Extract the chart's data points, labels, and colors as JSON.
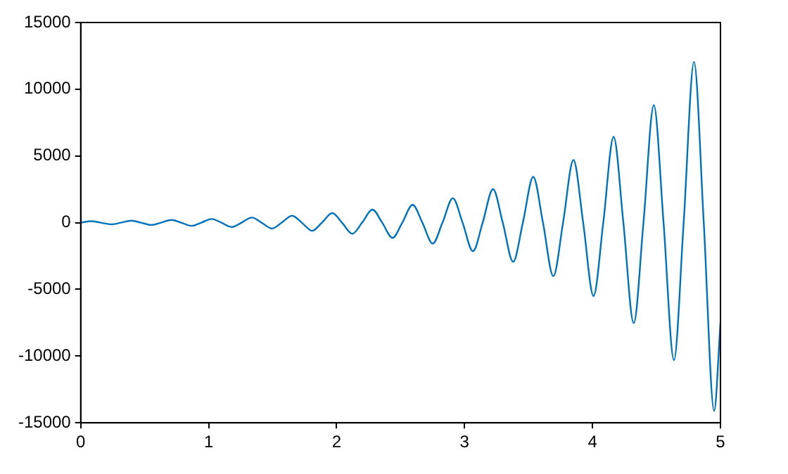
{
  "chart_data": {
    "type": "line",
    "xlim": [
      0,
      5
    ],
    "xticks": [
      0,
      1,
      2,
      3,
      4,
      5
    ],
    "ylim": [
      -15000,
      15000
    ],
    "yticks": [
      -15000,
      -10000,
      -5000,
      0,
      5000,
      10000,
      15000
    ],
    "grid": false,
    "legend": false,
    "marker": "none",
    "line_style": "solid",
    "x": [
      0,
      0.081,
      0.1571,
      0.2381,
      0.3142,
      0.3952,
      0.4712,
      0.5523,
      0.6283,
      0.7094,
      0.7854,
      0.8664,
      0.9425,
      1.0235,
      1.0996,
      1.1806,
      1.2566,
      1.3377,
      1.4137,
      1.4948,
      1.5708,
      1.6518,
      1.7279,
      1.8089,
      1.885,
      1.966,
      2.042,
      2.1231,
      2.1991,
      2.2802,
      2.3562,
      2.4372,
      2.5133,
      2.5943,
      2.6704,
      2.7514,
      2.8274,
      2.9085,
      2.9845,
      3.0656,
      3.1416,
      3.2226,
      3.2987,
      3.3797,
      3.4558,
      3.5368,
      3.6128,
      3.6939,
      3.7699,
      3.851,
      3.927,
      4.008,
      4.0841,
      4.1651,
      4.2412,
      4.3222,
      4.3982,
      4.4793,
      4.5553,
      4.6364,
      4.7124,
      4.7934,
      4.8695,
      4.9505,
      5
    ],
    "series": [
      {
        "color": "#0072bd",
        "values": [
          0,
          108,
          0,
          -127,
          0,
          148,
          0,
          -174,
          0,
          203,
          0,
          -238,
          0,
          278,
          0,
          -325,
          0,
          381,
          0,
          -445,
          0,
          521,
          0,
          -610,
          0,
          713,
          0,
          -835,
          0,
          977,
          0,
          -1143,
          0,
          1337,
          0,
          -1565,
          0,
          1831,
          0,
          -2142,
          0,
          2506,
          0,
          -2933,
          0,
          3431,
          0,
          -4015,
          0,
          4698,
          0,
          -5497,
          0,
          6432,
          0,
          -7526,
          0,
          8806,
          0,
          -10304,
          0,
          12056,
          0,
          -14106,
          -7510
        ]
      }
    ]
  }
}
